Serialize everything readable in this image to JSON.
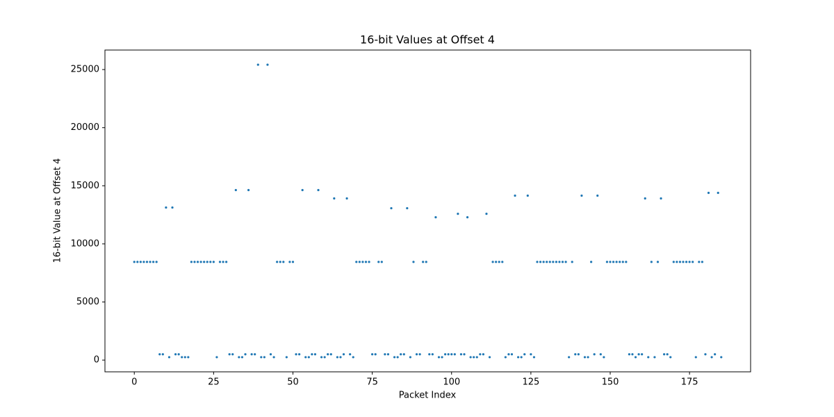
{
  "chart_data": {
    "type": "scatter",
    "title": "16-bit Values at Offset 4",
    "x_label": "Packet Index",
    "y_label": "16-bit Value at Offset 4",
    "color": "#1f77b4",
    "x": [
      0,
      1,
      2,
      3,
      4,
      5,
      6,
      7,
      8,
      9,
      10,
      11,
      12,
      13,
      14,
      15,
      16,
      17,
      18,
      19,
      20,
      21,
      22,
      23,
      24,
      25,
      26,
      27,
      28,
      29,
      30,
      31,
      32,
      33,
      34,
      35,
      36,
      37,
      38,
      39,
      40,
      41,
      42,
      43,
      44,
      45,
      46,
      47,
      48,
      49,
      50,
      51,
      52,
      53,
      54,
      55,
      56,
      57,
      58,
      59,
      60,
      61,
      62,
      63,
      64,
      65,
      66,
      67,
      68,
      69,
      70,
      71,
      72,
      73,
      74,
      75,
      76,
      77,
      78,
      79,
      80,
      81,
      82,
      83,
      84,
      85,
      86,
      87,
      88,
      89,
      90,
      91,
      92,
      93,
      94,
      95,
      96,
      97,
      98,
      99,
      100,
      101,
      102,
      103,
      104,
      105,
      106,
      107,
      108,
      109,
      110,
      111,
      112,
      113,
      114,
      115,
      116,
      117,
      118,
      119,
      120,
      121,
      122,
      123,
      124,
      125,
      126,
      127,
      128,
      129,
      130,
      131,
      132,
      133,
      134,
      135,
      136,
      137,
      138,
      139,
      140,
      141,
      142,
      143,
      144,
      145,
      146,
      147,
      148,
      149,
      150,
      151,
      152,
      153,
      154,
      155,
      156,
      157,
      158,
      159,
      160,
      161,
      162,
      163,
      164,
      165,
      166,
      167,
      168,
      169,
      170,
      171,
      172,
      173,
      174,
      175,
      176,
      177,
      178,
      179,
      180,
      181,
      182,
      183,
      184,
      185
    ],
    "values": [
      8450,
      8450,
      8450,
      8450,
      8450,
      8450,
      8450,
      8450,
      500,
      500,
      13130,
      250,
      13130,
      500,
      500,
      250,
      250,
      250,
      8450,
      8450,
      8450,
      8450,
      8450,
      8450,
      8450,
      8450,
      250,
      8450,
      8450,
      8450,
      500,
      500,
      14630,
      250,
      250,
      500,
      14630,
      500,
      500,
      25420,
      250,
      250,
      25420,
      500,
      250,
      8450,
      8450,
      8450,
      250,
      8450,
      8450,
      500,
      500,
      14630,
      250,
      250,
      500,
      500,
      14630,
      250,
      250,
      500,
      500,
      13910,
      250,
      250,
      500,
      13910,
      500,
      250,
      8450,
      8450,
      8450,
      8450,
      8450,
      500,
      500,
      8450,
      8450,
      500,
      500,
      13070,
      250,
      250,
      500,
      500,
      13070,
      250,
      8450,
      500,
      500,
      8450,
      8450,
      500,
      500,
      12290,
      250,
      250,
      500,
      500,
      500,
      500,
      12590,
      500,
      500,
      12290,
      250,
      250,
      250,
      500,
      500,
      12590,
      250,
      8450,
      8450,
      8450,
      8450,
      250,
      500,
      500,
      14150,
      250,
      250,
      500,
      14150,
      500,
      250,
      8450,
      8450,
      8450,
      8450,
      8450,
      8450,
      8450,
      8450,
      8450,
      8450,
      250,
      8450,
      500,
      500,
      14150,
      250,
      250,
      8450,
      500,
      14150,
      500,
      250,
      8450,
      8450,
      8450,
      8450,
      8450,
      8450,
      8450,
      500,
      500,
      250,
      500,
      500,
      13910,
      250,
      8450,
      250,
      8450,
      13910,
      500,
      500,
      250,
      8450,
      8450,
      8450,
      8450,
      8450,
      8450,
      8450,
      250,
      8450,
      8450,
      500,
      14390,
      250,
      500,
      14390,
      250
    ],
    "xlim": [
      -9.25,
      194.25
    ],
    "ylim": [
      -1010,
      26680
    ],
    "xticks": [
      0,
      25,
      50,
      75,
      100,
      125,
      150,
      175
    ],
    "yticks": [
      0,
      5000,
      10000,
      15000,
      20000,
      25000
    ]
  }
}
